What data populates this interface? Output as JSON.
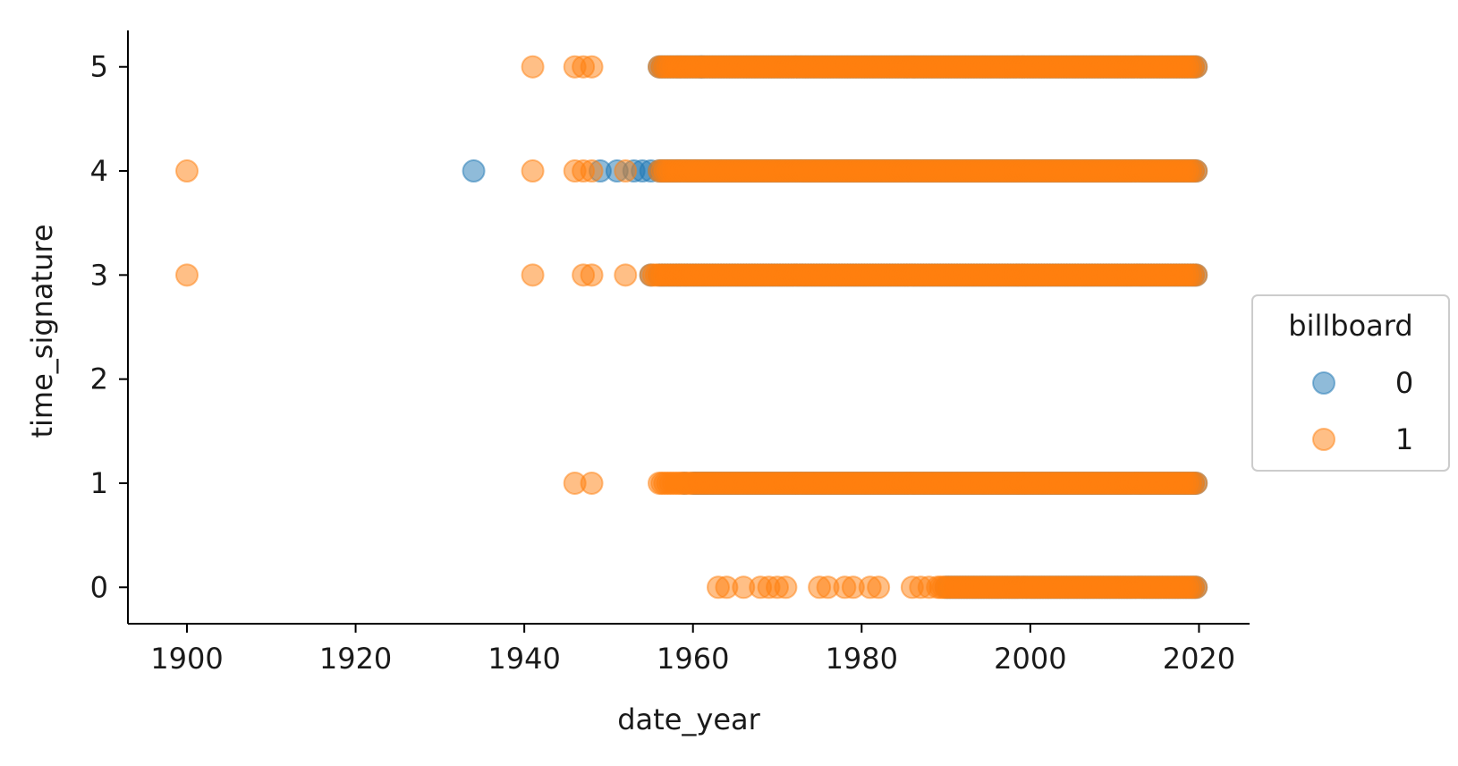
{
  "chart_data": {
    "type": "scatter",
    "title": "",
    "xlabel": "date_year",
    "ylabel": "time_signature",
    "xlim": [
      1893,
      2026
    ],
    "ylim": [
      -0.35,
      5.35
    ],
    "x_ticks": [
      1900,
      1920,
      1940,
      1960,
      1980,
      2000,
      2020
    ],
    "y_ticks": [
      0,
      1,
      2,
      3,
      4,
      5
    ],
    "grid": false,
    "legend": {
      "title": "billboard",
      "placement": "center-right outside"
    },
    "series": [
      {
        "name": "0",
        "color": "#1f77b4",
        "points": [
          {
            "x": 1934,
            "y": 4
          },
          {
            "x": 1949,
            "y": 4
          },
          {
            "x": 1951,
            "y": 4
          },
          {
            "x": 1953,
            "y": 4
          },
          {
            "x": 1954,
            "y": 4
          },
          {
            "x": 1955,
            "y": 4
          },
          {
            "x": 1955,
            "y": 3
          },
          {
            "x": 1959,
            "y": 1
          },
          {
            "x": 1961,
            "y": 5
          }
        ],
        "ranges": [
          {
            "from": 1956,
            "to": 2019,
            "y": 5
          },
          {
            "from": 1956,
            "to": 2019,
            "y": 4
          },
          {
            "from": 1956,
            "to": 2019,
            "y": 3
          },
          {
            "from": 1960,
            "to": 2019,
            "y": 1
          },
          {
            "from": 1990,
            "to": 2019,
            "y": 0
          }
        ]
      },
      {
        "name": "1",
        "color": "#ff7f0e",
        "points": [
          {
            "x": 1900,
            "y": 4
          },
          {
            "x": 1900,
            "y": 3
          },
          {
            "x": 1941,
            "y": 5
          },
          {
            "x": 1946,
            "y": 5
          },
          {
            "x": 1947,
            "y": 5
          },
          {
            "x": 1948,
            "y": 5
          },
          {
            "x": 1941,
            "y": 4
          },
          {
            "x": 1946,
            "y": 4
          },
          {
            "x": 1947,
            "y": 4
          },
          {
            "x": 1948,
            "y": 4
          },
          {
            "x": 1952,
            "y": 4
          },
          {
            "x": 1941,
            "y": 3
          },
          {
            "x": 1947,
            "y": 3
          },
          {
            "x": 1948,
            "y": 3
          },
          {
            "x": 1952,
            "y": 3
          },
          {
            "x": 1946,
            "y": 1
          },
          {
            "x": 1948,
            "y": 1
          },
          {
            "x": 1963,
            "y": 0
          },
          {
            "x": 1964,
            "y": 0
          },
          {
            "x": 1966,
            "y": 0
          },
          {
            "x": 1968,
            "y": 0
          },
          {
            "x": 1969,
            "y": 0
          },
          {
            "x": 1970,
            "y": 0
          },
          {
            "x": 1971,
            "y": 0
          },
          {
            "x": 1975,
            "y": 0
          },
          {
            "x": 1976,
            "y": 0
          },
          {
            "x": 1978,
            "y": 0
          },
          {
            "x": 1979,
            "y": 0
          },
          {
            "x": 1981,
            "y": 0
          },
          {
            "x": 1982,
            "y": 0
          },
          {
            "x": 1986,
            "y": 0
          },
          {
            "x": 1987,
            "y": 0
          },
          {
            "x": 1988,
            "y": 0
          }
        ],
        "ranges": [
          {
            "from": 1956,
            "to": 2019,
            "y": 5
          },
          {
            "from": 1956,
            "to": 2019,
            "y": 4
          },
          {
            "from": 1955,
            "to": 2019,
            "y": 3
          },
          {
            "from": 1956,
            "to": 2019,
            "y": 1
          },
          {
            "from": 1989,
            "to": 2019,
            "y": 0
          }
        ]
      }
    ]
  }
}
